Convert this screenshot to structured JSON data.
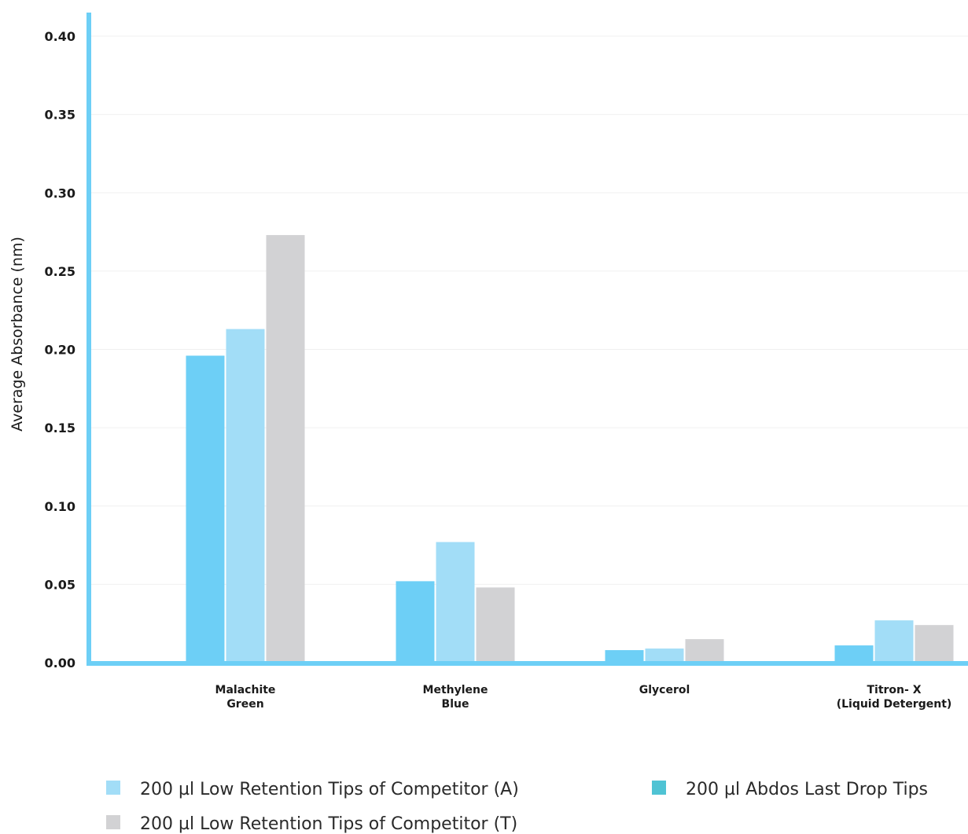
{
  "chart_data": {
    "type": "bar",
    "ylabel": "Average Absorbance (nm)",
    "ylim": [
      0,
      0.4
    ],
    "yticks": [
      "0.00",
      "0.05",
      "0.10",
      "0.15",
      "0.20",
      "0.25",
      "0.30",
      "0.35",
      "0.40"
    ],
    "grid": true,
    "legend_position": "bottom",
    "categories": [
      [
        "Malachite",
        "Green"
      ],
      [
        "Methylene",
        "Blue"
      ],
      [
        "Glycerol"
      ],
      [
        "Titron- X",
        "(Liquid Detergent)"
      ]
    ],
    "series": [
      {
        "name": "200 µl Abdos Last Drop Tips",
        "color": "#6dcff6",
        "legend_color": "#4fc3d4",
        "values": [
          0.196,
          0.052,
          0.008,
          0.011
        ]
      },
      {
        "name": "200 µl Low Retention Tips of Competitor (A)",
        "color": "#a2ddf7",
        "legend_color": "#a2ddf7",
        "values": [
          0.213,
          0.077,
          0.009,
          0.027
        ]
      },
      {
        "name": "200 µl Low Retention Tips of Competitor (T)",
        "color": "#d2d2d4",
        "legend_color": "#d2d2d4",
        "values": [
          0.273,
          0.048,
          0.015,
          0.024
        ]
      }
    ],
    "axis_color": "#6dcff6",
    "grid_color": "#f0f0f0"
  }
}
